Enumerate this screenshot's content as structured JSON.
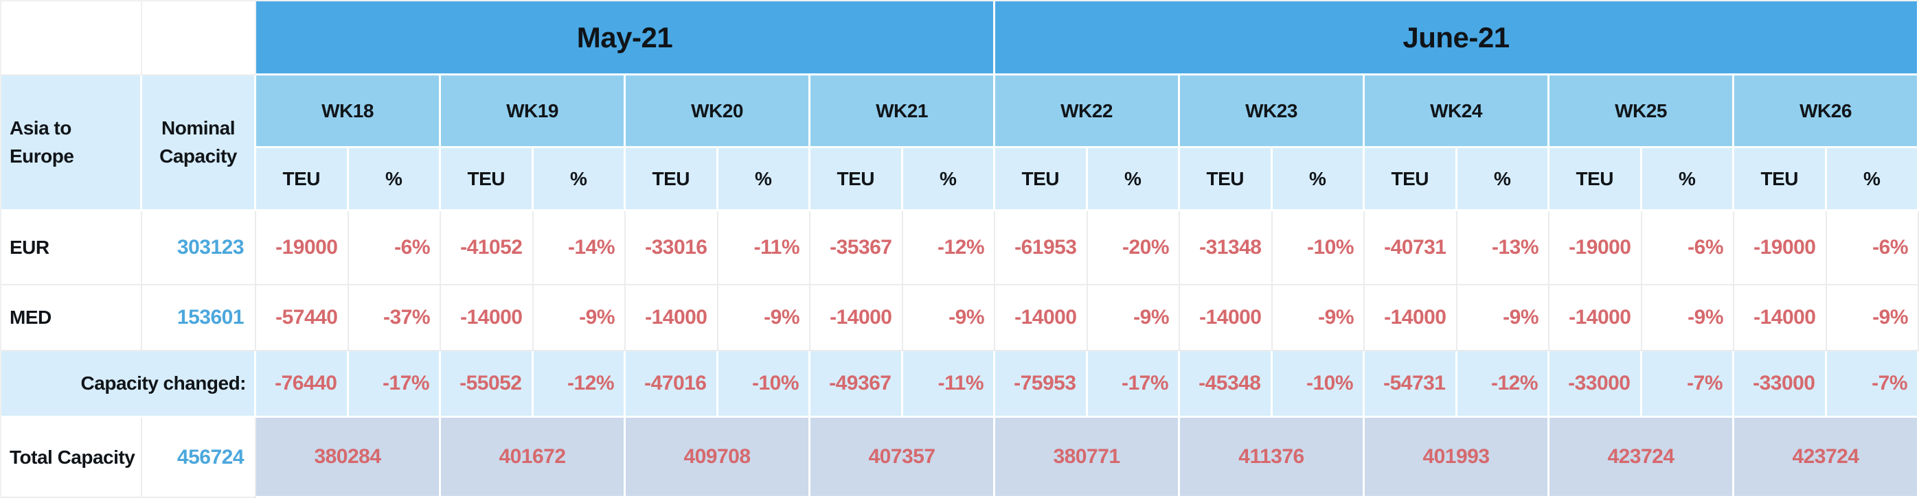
{
  "colors": {
    "month_header_bg": "#4AA9E5",
    "week_header_bg": "#92CFEE",
    "subheader_bg": "#D7EDFB",
    "side_header_bg": "#D7EDFB",
    "summary_row_bg": "#D7EDFB",
    "total_row_bg": "#CBD9EB",
    "negative_text": "#D6696D",
    "nominal_text": "#4BA7DC",
    "header_text": "#101418"
  },
  "header": {
    "route_label": "Asia to Europe",
    "nominal_label": "Nominal Capacity",
    "months": [
      {
        "label": "May-21",
        "weeks": [
          "WK18",
          "WK19",
          "WK20",
          "WK21"
        ]
      },
      {
        "label": "June-21",
        "weeks": [
          "WK22",
          "WK23",
          "WK24",
          "WK25",
          "WK26"
        ]
      }
    ],
    "unit_labels": [
      "TEU",
      "%"
    ]
  },
  "rows": [
    {
      "label": "EUR",
      "nominal": "303123",
      "cells": [
        [
          "-19000",
          "-6%"
        ],
        [
          "-41052",
          "-14%"
        ],
        [
          "-33016",
          "-11%"
        ],
        [
          "-35367",
          "-12%"
        ],
        [
          "-61953",
          "-20%"
        ],
        [
          "-31348",
          "-10%"
        ],
        [
          "-40731",
          "-13%"
        ],
        [
          "-19000",
          "-6%"
        ],
        [
          "-19000",
          "-6%"
        ]
      ]
    },
    {
      "label": "MED",
      "nominal": "153601",
      "cells": [
        [
          "-57440",
          "-37%"
        ],
        [
          "-14000",
          "-9%"
        ],
        [
          "-14000",
          "-9%"
        ],
        [
          "-14000",
          "-9%"
        ],
        [
          "-14000",
          "-9%"
        ],
        [
          "-14000",
          "-9%"
        ],
        [
          "-14000",
          "-9%"
        ],
        [
          "-14000",
          "-9%"
        ],
        [
          "-14000",
          "-9%"
        ]
      ]
    }
  ],
  "summary": {
    "label": "Capacity changed:",
    "cells": [
      [
        "-76440",
        "-17%"
      ],
      [
        "-55052",
        "-12%"
      ],
      [
        "-47016",
        "-10%"
      ],
      [
        "-49367",
        "-11%"
      ],
      [
        "-75953",
        "-17%"
      ],
      [
        "-45348",
        "-10%"
      ],
      [
        "-54731",
        "-12%"
      ],
      [
        "-33000",
        "-7%"
      ],
      [
        "-33000",
        "-7%"
      ]
    ]
  },
  "total": {
    "label": "Total Capacity",
    "nominal": "456724",
    "values": [
      "380284",
      "401672",
      "409708",
      "407357",
      "380771",
      "411376",
      "401993",
      "423724",
      "423724"
    ]
  }
}
